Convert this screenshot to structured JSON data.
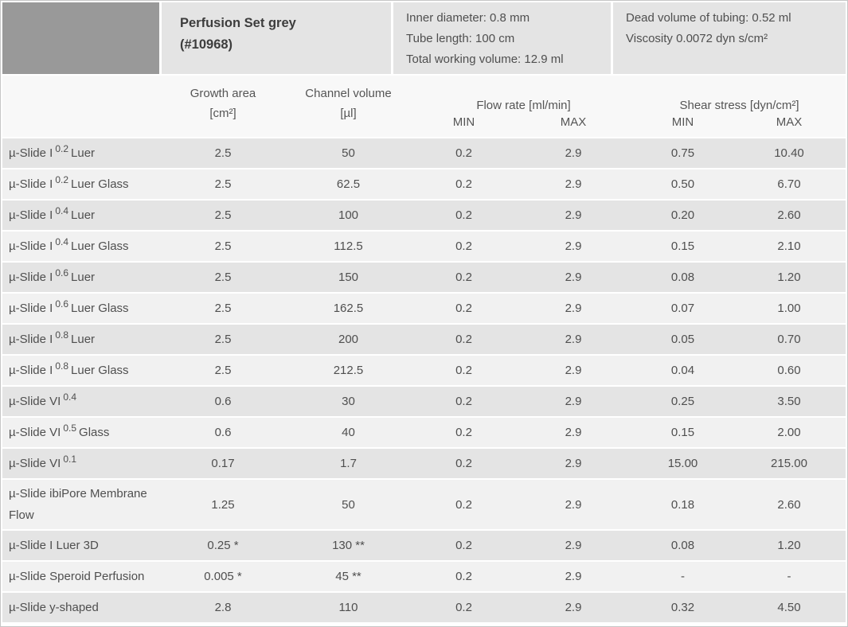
{
  "header": {
    "swatch_color": "#999999",
    "title_line1": "Perfusion Set grey",
    "title_line2": "(#10968)",
    "specs_left": [
      "Inner diameter: 0.8 mm",
      "Tube length: 100 cm",
      "Total working volume: 12.9 ml"
    ],
    "specs_right": [
      "Dead volume of tubing: 0.52 ml",
      "Viscosity 0.0072 dyn s/cm²"
    ]
  },
  "columns": {
    "growth_line1": "Growth area",
    "growth_line2": "[cm²]",
    "channel_line1": "Channel volume",
    "channel_line2": "[µl]",
    "flow_group": "Flow rate [ml/min]",
    "shear_group": "Shear stress [dyn/cm²]",
    "min_label": "MIN",
    "max_label": "MAX"
  },
  "table": {
    "rows": [
      {
        "prefix": "µ-Slide I",
        "sup": "0.2",
        "suffix": "Luer",
        "growth": "2.5",
        "channel": "50",
        "flow_min": "0.2",
        "flow_max": "2.9",
        "shear_min": "0.75",
        "shear_max": "10.40"
      },
      {
        "prefix": "µ-Slide I",
        "sup": "0.2",
        "suffix": "Luer Glass",
        "growth": "2.5",
        "channel": "62.5",
        "flow_min": "0.2",
        "flow_max": "2.9",
        "shear_min": "0.50",
        "shear_max": "6.70"
      },
      {
        "prefix": "µ-Slide I",
        "sup": "0.4",
        "suffix": "Luer",
        "growth": "2.5",
        "channel": "100",
        "flow_min": "0.2",
        "flow_max": "2.9",
        "shear_min": "0.20",
        "shear_max": "2.60"
      },
      {
        "prefix": "µ-Slide I",
        "sup": "0.4",
        "suffix": "Luer Glass",
        "growth": "2.5",
        "channel": "112.5",
        "flow_min": "0.2",
        "flow_max": "2.9",
        "shear_min": "0.15",
        "shear_max": "2.10"
      },
      {
        "prefix": "µ-Slide I",
        "sup": "0.6",
        "suffix": "Luer",
        "growth": "2.5",
        "channel": "150",
        "flow_min": "0.2",
        "flow_max": "2.9",
        "shear_min": "0.08",
        "shear_max": "1.20"
      },
      {
        "prefix": "µ-Slide I",
        "sup": "0.6",
        "suffix": "Luer Glass",
        "growth": "2.5",
        "channel": "162.5",
        "flow_min": "0.2",
        "flow_max": "2.9",
        "shear_min": "0.07",
        "shear_max": "1.00"
      },
      {
        "prefix": "µ-Slide I",
        "sup": "0.8",
        "suffix": "Luer",
        "growth": "2.5",
        "channel": "200",
        "flow_min": "0.2",
        "flow_max": "2.9",
        "shear_min": "0.05",
        "shear_max": "0.70"
      },
      {
        "prefix": "µ-Slide I",
        "sup": "0.8",
        "suffix": "Luer Glass",
        "growth": "2.5",
        "channel": "212.5",
        "flow_min": "0.2",
        "flow_max": "2.9",
        "shear_min": "0.04",
        "shear_max": "0.60"
      },
      {
        "prefix": "µ-Slide VI",
        "sup": "0.4",
        "suffix": "",
        "growth": "0.6",
        "channel": "30",
        "flow_min": "0.2",
        "flow_max": "2.9",
        "shear_min": "0.25",
        "shear_max": "3.50"
      },
      {
        "prefix": "µ-Slide VI",
        "sup": "0.5",
        "suffix": "Glass",
        "growth": "0.6",
        "channel": "40",
        "flow_min": "0.2",
        "flow_max": "2.9",
        "shear_min": "0.15",
        "shear_max": "2.00"
      },
      {
        "prefix": "µ-Slide VI",
        "sup": "0.1",
        "suffix": "",
        "growth": "0.17",
        "channel": "1.7",
        "flow_min": "0.2",
        "flow_max": "2.9",
        "shear_min": "15.00",
        "shear_max": "215.00"
      },
      {
        "prefix": "µ-Slide ibiPore Membrane Flow",
        "sup": "",
        "suffix": "",
        "tall": true,
        "growth": "1.25",
        "channel": "50",
        "flow_min": "0.2",
        "flow_max": "2.9",
        "shear_min": "0.18",
        "shear_max": "2.60"
      },
      {
        "prefix": "µ-Slide I Luer 3D",
        "sup": "",
        "suffix": "",
        "growth": "0.25 *",
        "channel": "130 **",
        "flow_min": "0.2",
        "flow_max": "2.9",
        "shear_min": "0.08",
        "shear_max": "1.20"
      },
      {
        "prefix": "µ-Slide Speroid Perfusion",
        "sup": "",
        "suffix": "",
        "growth": "0.005 *",
        "channel": "45 **",
        "flow_min": "0.2",
        "flow_max": "2.9",
        "shear_min": "-",
        "shear_max": "-"
      },
      {
        "prefix": "µ-Slide y-shaped",
        "sup": "",
        "suffix": "",
        "growth": "2.8",
        "channel": "110",
        "flow_min": "0.2",
        "flow_max": "2.9",
        "shear_min": "0.32",
        "shear_max": "4.50"
      }
    ]
  }
}
